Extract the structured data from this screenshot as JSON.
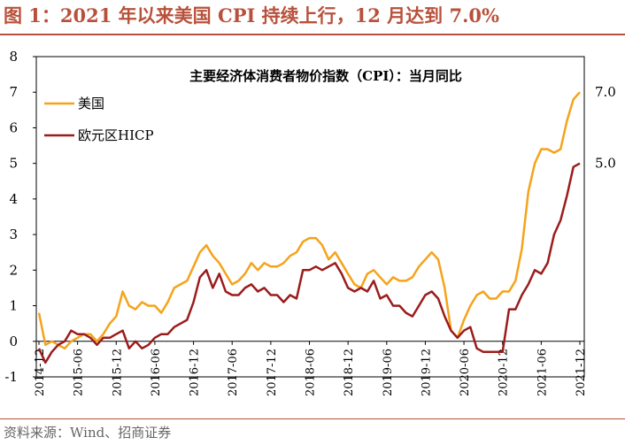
{
  "header": {
    "title": "图 1：2021 年以来美国 CPI 持续上行，12 月达到 7.0%",
    "source": "资料来源：Wind、招商证券"
  },
  "colors": {
    "accent": "#b8513b",
    "us": "#f5a31a",
    "euro": "#9b1c1c"
  },
  "chart_data": {
    "type": "line",
    "title": "主要经济体消费者物价指数（CPI）：当月同比",
    "ylim": [
      -1,
      8
    ],
    "yticks": [
      -1,
      0,
      1,
      2,
      3,
      4,
      5,
      6,
      7,
      8
    ],
    "xticks": [
      "2014-12",
      "2015-06",
      "2015-12",
      "2016-06",
      "2016-12",
      "2017-06",
      "2017-12",
      "2018-06",
      "2018-12",
      "2019-06",
      "2019-12",
      "2020-06",
      "2020-12",
      "2021-06",
      "2021-12"
    ],
    "legend_position": "top-left",
    "grid": false,
    "x": [
      "2014-12",
      "2015-01",
      "2015-02",
      "2015-03",
      "2015-04",
      "2015-05",
      "2015-06",
      "2015-07",
      "2015-08",
      "2015-09",
      "2015-10",
      "2015-11",
      "2015-12",
      "2016-01",
      "2016-02",
      "2016-03",
      "2016-04",
      "2016-05",
      "2016-06",
      "2016-07",
      "2016-08",
      "2016-09",
      "2016-10",
      "2016-11",
      "2016-12",
      "2017-01",
      "2017-02",
      "2017-03",
      "2017-04",
      "2017-05",
      "2017-06",
      "2017-07",
      "2017-08",
      "2017-09",
      "2017-10",
      "2017-11",
      "2017-12",
      "2018-01",
      "2018-02",
      "2018-03",
      "2018-04",
      "2018-05",
      "2018-06",
      "2018-07",
      "2018-08",
      "2018-09",
      "2018-10",
      "2018-11",
      "2018-12",
      "2019-01",
      "2019-02",
      "2019-03",
      "2019-04",
      "2019-05",
      "2019-06",
      "2019-07",
      "2019-08",
      "2019-09",
      "2019-10",
      "2019-11",
      "2019-12",
      "2020-01",
      "2020-02",
      "2020-03",
      "2020-04",
      "2020-05",
      "2020-06",
      "2020-07",
      "2020-08",
      "2020-09",
      "2020-10",
      "2020-11",
      "2020-12",
      "2021-01",
      "2021-02",
      "2021-03",
      "2021-04",
      "2021-05",
      "2021-06",
      "2021-07",
      "2021-08",
      "2021-09",
      "2021-10",
      "2021-11",
      "2021-12"
    ],
    "series": [
      {
        "name": "美国",
        "color": "#f5a31a",
        "end_label": "7.0",
        "values": [
          0.8,
          -0.1,
          0.0,
          -0.1,
          -0.2,
          0.0,
          0.1,
          0.2,
          0.2,
          0.0,
          0.2,
          0.5,
          0.7,
          1.4,
          1.0,
          0.9,
          1.1,
          1.0,
          1.0,
          0.8,
          1.1,
          1.5,
          1.6,
          1.7,
          2.1,
          2.5,
          2.7,
          2.4,
          2.2,
          1.9,
          1.6,
          1.7,
          1.9,
          2.2,
          2.0,
          2.2,
          2.1,
          2.1,
          2.2,
          2.4,
          2.5,
          2.8,
          2.9,
          2.9,
          2.7,
          2.3,
          2.5,
          2.2,
          1.9,
          1.6,
          1.5,
          1.9,
          2.0,
          1.8,
          1.6,
          1.8,
          1.7,
          1.7,
          1.8,
          2.1,
          2.3,
          2.5,
          2.3,
          1.5,
          0.3,
          0.1,
          0.6,
          1.0,
          1.3,
          1.4,
          1.2,
          1.2,
          1.4,
          1.4,
          1.7,
          2.6,
          4.2,
          5.0,
          5.4,
          5.4,
          5.3,
          5.4,
          6.2,
          6.8,
          7.0
        ]
      },
      {
        "name": "欧元区HICP",
        "color": "#9b1c1c",
        "end_label": "5.0",
        "values": [
          -0.2,
          -0.6,
          -0.3,
          -0.1,
          0.0,
          0.3,
          0.2,
          0.2,
          0.1,
          -0.1,
          0.1,
          0.1,
          0.2,
          0.3,
          -0.2,
          0.0,
          -0.2,
          -0.1,
          0.1,
          0.2,
          0.2,
          0.4,
          0.5,
          0.6,
          1.1,
          1.8,
          2.0,
          1.5,
          1.9,
          1.4,
          1.3,
          1.3,
          1.5,
          1.6,
          1.4,
          1.5,
          1.3,
          1.3,
          1.1,
          1.3,
          1.2,
          2.0,
          2.0,
          2.1,
          2.0,
          2.1,
          2.2,
          1.9,
          1.5,
          1.4,
          1.5,
          1.4,
          1.7,
          1.2,
          1.3,
          1.0,
          1.0,
          0.8,
          0.7,
          1.0,
          1.3,
          1.4,
          1.2,
          0.7,
          0.3,
          0.1,
          0.3,
          0.4,
          -0.2,
          -0.3,
          -0.3,
          -0.3,
          -0.3,
          0.9,
          0.9,
          1.3,
          1.6,
          2.0,
          1.9,
          2.2,
          3.0,
          3.4,
          4.1,
          4.9,
          5.0
        ]
      }
    ]
  }
}
